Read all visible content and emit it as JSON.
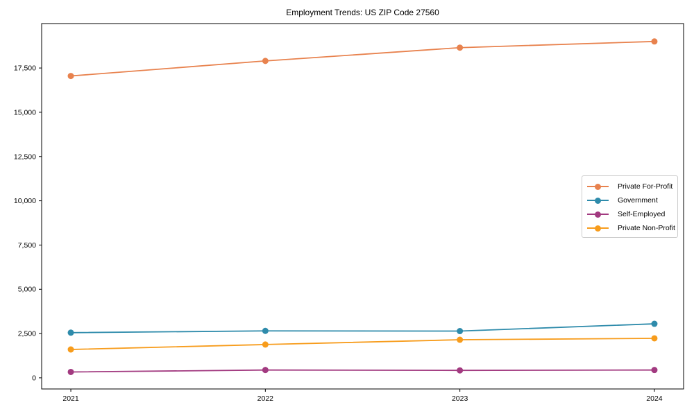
{
  "chart_data": {
    "type": "line",
    "title": "Employment Trends: US ZIP Code 27560",
    "x": [
      2021,
      2022,
      2023,
      2024
    ],
    "x_tick_labels": [
      "2021",
      "2022",
      "2023",
      "2024"
    ],
    "y_ticks": [
      0,
      2500,
      5000,
      7500,
      10000,
      12500,
      15000,
      17500
    ],
    "y_tick_labels": [
      "0",
      "2,500",
      "5,000",
      "7,500",
      "10,000",
      "12,500",
      "15,000",
      "17,500"
    ],
    "xlim": [
      2020.85,
      2024.15
    ],
    "ylim": [
      -630,
      20010
    ],
    "grid": false,
    "legend_position": "center right",
    "series": [
      {
        "name": "Private For-Profit",
        "color": "#e8824e",
        "values": [
          17050,
          17900,
          18650,
          19000
        ]
      },
      {
        "name": "Government",
        "color": "#2e8bab",
        "values": [
          2550,
          2650,
          2640,
          3050
        ]
      },
      {
        "name": "Self-Employed",
        "color": "#a23a80",
        "values": [
          330,
          440,
          420,
          440
        ]
      },
      {
        "name": "Private Non-Profit",
        "color": "#f79c1c",
        "values": [
          1600,
          1880,
          2150,
          2230
        ]
      }
    ],
    "axis_color": "#000000",
    "background_color": "#ffffff"
  }
}
